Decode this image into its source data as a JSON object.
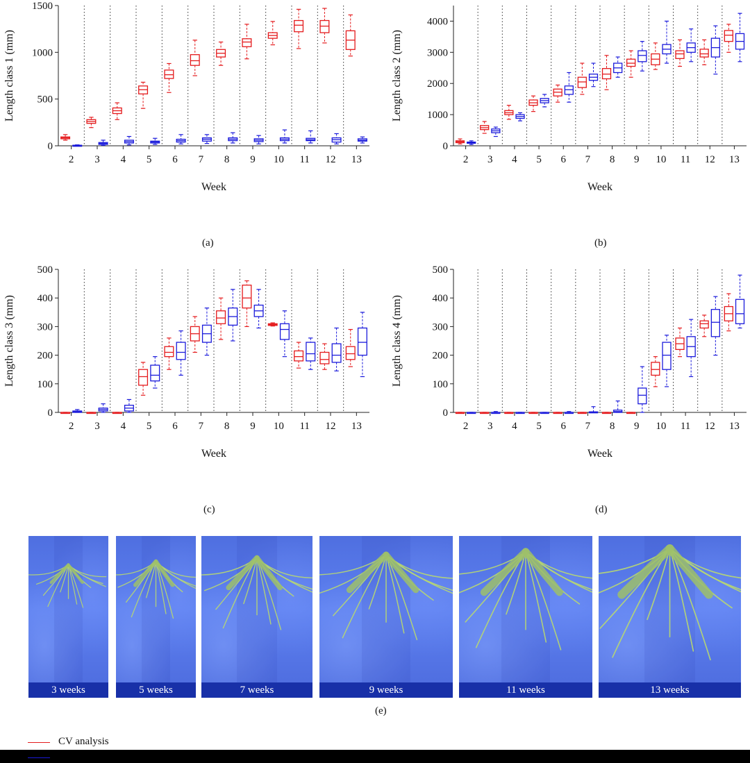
{
  "colors": {
    "cv": "#e41a1c",
    "manual": "#1a1adb"
  },
  "chart_data": [
    {
      "type": "boxplot",
      "caption": "(a)",
      "xlabel": "Week",
      "ylabel": "Length class 1 (mm)",
      "ylim": [
        0,
        1500
      ],
      "yticks": [
        0,
        500,
        1000,
        1500
      ],
      "categories": [
        "2",
        "3",
        "4",
        "5",
        "6",
        "7",
        "8",
        "9",
        "10",
        "11",
        "12",
        "13"
      ],
      "grid": "dotted vertical separators between weeks",
      "series": [
        {
          "name": "CV analysis",
          "color": "red",
          "boxes": [
            {
              "min": 60,
              "q1": 75,
              "median": 85,
              "q3": 95,
              "max": 120
            },
            {
              "min": 195,
              "q1": 240,
              "median": 260,
              "q3": 280,
              "max": 305
            },
            {
              "min": 280,
              "q1": 345,
              "median": 375,
              "q3": 405,
              "max": 460
            },
            {
              "min": 400,
              "q1": 555,
              "median": 600,
              "q3": 640,
              "max": 680
            },
            {
              "min": 570,
              "q1": 720,
              "median": 760,
              "q3": 810,
              "max": 880
            },
            {
              "min": 750,
              "q1": 860,
              "median": 910,
              "q3": 975,
              "max": 1130
            },
            {
              "min": 860,
              "q1": 950,
              "median": 990,
              "q3": 1030,
              "max": 1110
            },
            {
              "min": 930,
              "q1": 1060,
              "median": 1110,
              "q3": 1145,
              "max": 1300
            },
            {
              "min": 1080,
              "q1": 1150,
              "median": 1180,
              "q3": 1210,
              "max": 1330
            },
            {
              "min": 1040,
              "q1": 1220,
              "median": 1290,
              "q3": 1340,
              "max": 1460
            },
            {
              "min": 1100,
              "q1": 1210,
              "median": 1280,
              "q3": 1340,
              "max": 1470
            },
            {
              "min": 960,
              "q1": 1030,
              "median": 1130,
              "q3": 1230,
              "max": 1400
            }
          ]
        },
        {
          "name": "",
          "color": "blue",
          "boxes": [
            {
              "min": 0,
              "q1": 2,
              "median": 4,
              "q3": 6,
              "max": 10
            },
            {
              "min": 5,
              "q1": 15,
              "median": 25,
              "q3": 35,
              "max": 60
            },
            {
              "min": 10,
              "q1": 30,
              "median": 45,
              "q3": 60,
              "max": 100
            },
            {
              "min": 15,
              "q1": 30,
              "median": 40,
              "q3": 50,
              "max": 80
            },
            {
              "min": 20,
              "q1": 40,
              "median": 55,
              "q3": 70,
              "max": 120
            },
            {
              "min": 25,
              "q1": 50,
              "median": 70,
              "q3": 85,
              "max": 120
            },
            {
              "min": 30,
              "q1": 55,
              "median": 70,
              "q3": 85,
              "max": 140
            },
            {
              "min": 20,
              "q1": 45,
              "median": 60,
              "q3": 75,
              "max": 110
            },
            {
              "min": 30,
              "q1": 55,
              "median": 70,
              "q3": 85,
              "max": 170
            },
            {
              "min": 30,
              "q1": 55,
              "median": 65,
              "q3": 80,
              "max": 160
            },
            {
              "min": 20,
              "q1": 40,
              "median": 65,
              "q3": 85,
              "max": 130
            },
            {
              "min": 30,
              "q1": 50,
              "median": 60,
              "q3": 75,
              "max": 95
            }
          ]
        }
      ]
    },
    {
      "type": "boxplot",
      "caption": "(b)",
      "xlabel": "Week",
      "ylabel": "Length class 2 (mm)",
      "ylim": [
        0,
        4500
      ],
      "yticks": [
        0,
        1000,
        2000,
        3000,
        4000
      ],
      "categories": [
        "2",
        "3",
        "4",
        "5",
        "6",
        "7",
        "8",
        "9",
        "10",
        "11",
        "12",
        "13"
      ],
      "grid": "dotted vertical separators between weeks",
      "series": [
        {
          "name": "CV analysis",
          "color": "red",
          "boxes": [
            {
              "min": 60,
              "q1": 100,
              "median": 130,
              "q3": 160,
              "max": 220
            },
            {
              "min": 400,
              "q1": 520,
              "median": 580,
              "q3": 650,
              "max": 780
            },
            {
              "min": 850,
              "q1": 1000,
              "median": 1060,
              "q3": 1130,
              "max": 1300
            },
            {
              "min": 1100,
              "q1": 1300,
              "median": 1380,
              "q3": 1470,
              "max": 1600
            },
            {
              "min": 1400,
              "q1": 1600,
              "median": 1720,
              "q3": 1820,
              "max": 1950
            },
            {
              "min": 1650,
              "q1": 1870,
              "median": 2050,
              "q3": 2200,
              "max": 2650
            },
            {
              "min": 1800,
              "q1": 2150,
              "median": 2300,
              "q3": 2480,
              "max": 2900
            },
            {
              "min": 2200,
              "q1": 2550,
              "median": 2650,
              "q3": 2780,
              "max": 3050
            },
            {
              "min": 2450,
              "q1": 2600,
              "median": 2780,
              "q3": 2950,
              "max": 3300
            },
            {
              "min": 2550,
              "q1": 2800,
              "median": 2950,
              "q3": 3050,
              "max": 3400
            },
            {
              "min": 2600,
              "q1": 2850,
              "median": 2950,
              "q3": 3100,
              "max": 3400
            },
            {
              "min": 3000,
              "q1": 3350,
              "median": 3550,
              "q3": 3700,
              "max": 3900
            }
          ]
        },
        {
          "name": "",
          "color": "blue",
          "boxes": [
            {
              "min": 40,
              "q1": 80,
              "median": 100,
              "q3": 120,
              "max": 160
            },
            {
              "min": 300,
              "q1": 420,
              "median": 480,
              "q3": 540,
              "max": 600
            },
            {
              "min": 800,
              "q1": 880,
              "median": 940,
              "q3": 1000,
              "max": 1060
            },
            {
              "min": 1250,
              "q1": 1380,
              "median": 1450,
              "q3": 1520,
              "max": 1650
            },
            {
              "min": 1400,
              "q1": 1650,
              "median": 1800,
              "q3": 1920,
              "max": 2350
            },
            {
              "min": 1900,
              "q1": 2100,
              "median": 2200,
              "q3": 2300,
              "max": 2650
            },
            {
              "min": 2200,
              "q1": 2350,
              "median": 2500,
              "q3": 2650,
              "max": 2850
            },
            {
              "min": 2400,
              "q1": 2700,
              "median": 2900,
              "q3": 3050,
              "max": 3350
            },
            {
              "min": 2650,
              "q1": 2950,
              "median": 3100,
              "q3": 3250,
              "max": 4000
            },
            {
              "min": 2700,
              "q1": 3000,
              "median": 3150,
              "q3": 3300,
              "max": 3750
            },
            {
              "min": 2300,
              "q1": 2850,
              "median": 3150,
              "q3": 3450,
              "max": 3850
            },
            {
              "min": 2700,
              "q1": 3100,
              "median": 3350,
              "q3": 3600,
              "max": 4250
            }
          ]
        }
      ]
    },
    {
      "type": "boxplot",
      "caption": "(c)",
      "xlabel": "Week",
      "ylabel": "Length class 3 (mm)",
      "ylim": [
        0,
        500
      ],
      "yticks": [
        0,
        100,
        200,
        300,
        400,
        500
      ],
      "categories": [
        "2",
        "3",
        "4",
        "5",
        "6",
        "7",
        "8",
        "9",
        "10",
        "11",
        "12",
        "13"
      ],
      "grid": "dotted vertical separators between weeks",
      "series": [
        {
          "name": "CV analysis",
          "color": "red",
          "boxes": [
            {
              "min": 0,
              "q1": 0,
              "median": 0,
              "q3": 0,
              "max": 0
            },
            {
              "min": 0,
              "q1": 0,
              "median": 0,
              "q3": 0,
              "max": 0
            },
            {
              "min": 0,
              "q1": 0,
              "median": 0,
              "q3": 0,
              "max": 0
            },
            {
              "min": 60,
              "q1": 95,
              "median": 125,
              "q3": 150,
              "max": 175
            },
            {
              "min": 150,
              "q1": 195,
              "median": 210,
              "q3": 230,
              "max": 260
            },
            {
              "min": 210,
              "q1": 250,
              "median": 275,
              "q3": 300,
              "max": 335
            },
            {
              "min": 255,
              "q1": 310,
              "median": 330,
              "q3": 355,
              "max": 400
            },
            {
              "min": 300,
              "q1": 365,
              "median": 400,
              "q3": 445,
              "max": 460
            },
            {
              "min": 302,
              "q1": 304,
              "median": 307,
              "q3": 310,
              "max": 313
            },
            {
              "min": 155,
              "q1": 180,
              "median": 195,
              "q3": 215,
              "max": 245
            },
            {
              "min": 150,
              "q1": 170,
              "median": 185,
              "q3": 210,
              "max": 240
            },
            {
              "min": 160,
              "q1": 185,
              "median": 205,
              "q3": 230,
              "max": 290
            }
          ]
        },
        {
          "name": "",
          "color": "blue",
          "boxes": [
            {
              "min": 0,
              "q1": 0,
              "median": 2,
              "q3": 5,
              "max": 10
            },
            {
              "min": 0,
              "q1": 5,
              "median": 10,
              "q3": 15,
              "max": 30
            },
            {
              "min": 0,
              "q1": 5,
              "median": 15,
              "q3": 25,
              "max": 45
            },
            {
              "min": 85,
              "q1": 110,
              "median": 130,
              "q3": 165,
              "max": 195
            },
            {
              "min": 130,
              "q1": 185,
              "median": 210,
              "q3": 245,
              "max": 285
            },
            {
              "min": 200,
              "q1": 245,
              "median": 275,
              "q3": 305,
              "max": 365
            },
            {
              "min": 250,
              "q1": 305,
              "median": 335,
              "q3": 365,
              "max": 430
            },
            {
              "min": 295,
              "q1": 335,
              "median": 355,
              "q3": 375,
              "max": 430
            },
            {
              "min": 195,
              "q1": 255,
              "median": 290,
              "q3": 310,
              "max": 355
            },
            {
              "min": 150,
              "q1": 180,
              "median": 205,
              "q3": 245,
              "max": 260
            },
            {
              "min": 145,
              "q1": 175,
              "median": 200,
              "q3": 240,
              "max": 295
            },
            {
              "min": 125,
              "q1": 200,
              "median": 245,
              "q3": 295,
              "max": 350
            }
          ]
        }
      ]
    },
    {
      "type": "boxplot",
      "caption": "(d)",
      "xlabel": "Week",
      "ylabel": "Length class 4 (mm)",
      "ylim": [
        0,
        500
      ],
      "yticks": [
        0,
        100,
        200,
        300,
        400,
        500
      ],
      "categories": [
        "2",
        "3",
        "4",
        "5",
        "6",
        "7",
        "8",
        "9",
        "10",
        "11",
        "12",
        "13"
      ],
      "grid": "dotted vertical separators between weeks",
      "series": [
        {
          "name": "CV analysis",
          "color": "red",
          "boxes": [
            {
              "min": 0,
              "q1": 0,
              "median": 0,
              "q3": 0,
              "max": 0
            },
            {
              "min": 0,
              "q1": 0,
              "median": 0,
              "q3": 0,
              "max": 0
            },
            {
              "min": 0,
              "q1": 0,
              "median": 0,
              "q3": 0,
              "max": 0
            },
            {
              "min": 0,
              "q1": 0,
              "median": 0,
              "q3": 0,
              "max": 0
            },
            {
              "min": 0,
              "q1": 0,
              "median": 0,
              "q3": 0,
              "max": 0
            },
            {
              "min": 0,
              "q1": 0,
              "median": 0,
              "q3": 0,
              "max": 0
            },
            {
              "min": 0,
              "q1": 0,
              "median": 0,
              "q3": 0,
              "max": 0
            },
            {
              "min": 0,
              "q1": 0,
              "median": 0,
              "q3": 0,
              "max": 0
            },
            {
              "min": 90,
              "q1": 130,
              "median": 150,
              "q3": 175,
              "max": 195
            },
            {
              "min": 195,
              "q1": 220,
              "median": 240,
              "q3": 260,
              "max": 295
            },
            {
              "min": 265,
              "q1": 295,
              "median": 310,
              "q3": 320,
              "max": 340
            },
            {
              "min": 285,
              "q1": 320,
              "median": 345,
              "q3": 370,
              "max": 415
            }
          ]
        },
        {
          "name": "",
          "color": "blue",
          "boxes": [
            {
              "min": 0,
              "q1": 0,
              "median": 0,
              "q3": 0,
              "max": 0
            },
            {
              "min": 0,
              "q1": 0,
              "median": 0,
              "q3": 0,
              "max": 3
            },
            {
              "min": 0,
              "q1": 0,
              "median": 0,
              "q3": 0,
              "max": 0
            },
            {
              "min": 0,
              "q1": 0,
              "median": 0,
              "q3": 0,
              "max": 0
            },
            {
              "min": 0,
              "q1": 0,
              "median": 0,
              "q3": 0,
              "max": 3
            },
            {
              "min": 0,
              "q1": 0,
              "median": 0,
              "q3": 2,
              "max": 20
            },
            {
              "min": 0,
              "q1": 0,
              "median": 3,
              "q3": 8,
              "max": 40
            },
            {
              "min": 0,
              "q1": 30,
              "median": 60,
              "q3": 85,
              "max": 160
            },
            {
              "min": 90,
              "q1": 150,
              "median": 200,
              "q3": 245,
              "max": 270
            },
            {
              "min": 125,
              "q1": 195,
              "median": 230,
              "q3": 265,
              "max": 325
            },
            {
              "min": 200,
              "q1": 265,
              "median": 315,
              "q3": 360,
              "max": 405
            },
            {
              "min": 295,
              "q1": 310,
              "median": 345,
              "q3": 395,
              "max": 480
            }
          ]
        }
      ]
    }
  ],
  "photos": {
    "caption": "(e)",
    "panels": [
      {
        "label": "3 weeks",
        "growth": 0.22
      },
      {
        "label": "5 weeks",
        "growth": 0.38
      },
      {
        "label": "7 weeks",
        "growth": 0.55
      },
      {
        "label": "9 weeks",
        "growth": 0.7
      },
      {
        "label": "11 weeks",
        "growth": 0.85
      },
      {
        "label": "13 weeks",
        "growth": 1.0
      }
    ]
  },
  "legend": [
    {
      "label": "CV analysis",
      "color": "#e41a1c"
    }
  ]
}
